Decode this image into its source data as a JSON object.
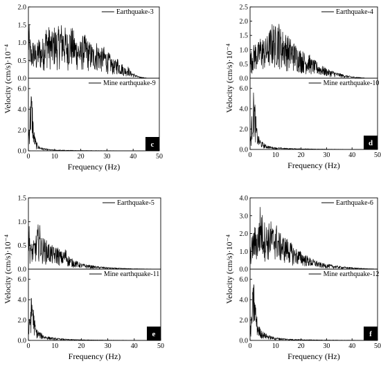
{
  "chart_data": [
    {
      "type": "line",
      "panel_letter": "c",
      "xlabel": "Frequency (Hz)",
      "ylabel": "Velocity (cm/s)·10⁻⁴",
      "xlim": [
        0,
        50
      ],
      "xticks": [
        "0",
        "10",
        "20",
        "30",
        "40",
        "50"
      ],
      "subplots": [
        {
          "name": "Earthquake-3",
          "ylim": [
            0,
            2.0
          ],
          "yticks": [
            "0.0",
            "0.5",
            "1.0",
            "1.5",
            "2.0"
          ],
          "x": [
            0,
            1,
            2,
            3,
            4,
            5,
            6,
            7,
            8,
            9,
            10,
            11,
            12,
            13,
            14,
            15,
            16,
            17,
            18,
            19,
            20,
            21,
            22,
            23,
            24,
            25,
            26,
            27,
            28,
            29,
            30,
            31,
            32,
            33,
            34,
            35,
            36,
            37,
            38,
            39,
            40,
            41,
            42,
            43,
            44,
            45
          ],
          "values": [
            1.75,
            0.9,
            1.15,
            0.85,
            1.2,
            1.0,
            1.3,
            1.55,
            1.45,
            1.3,
            1.5,
            1.35,
            1.6,
            1.55,
            1.45,
            1.3,
            1.5,
            1.4,
            1.2,
            1.15,
            1.05,
            1.25,
            1.2,
            1.05,
            1.0,
            0.9,
            1.05,
            0.95,
            0.85,
            0.9,
            0.75,
            0.7,
            0.55,
            0.5,
            0.6,
            0.45,
            0.4,
            0.3,
            0.35,
            0.2,
            0.15,
            0.1,
            0.05,
            0.04,
            0.02,
            0.01
          ]
        },
        {
          "name": "Mine earthquake-9",
          "ylim": [
            0,
            7.0
          ],
          "yticks": [
            "0.0",
            "2.0",
            "4.0",
            "6.0"
          ],
          "x": [
            0,
            0.5,
            1,
            1.5,
            2,
            2.5,
            3,
            4,
            5,
            6,
            8,
            10,
            15,
            20,
            25,
            30,
            40,
            50
          ],
          "values": [
            1.5,
            4.0,
            6.2,
            5.0,
            2.2,
            1.5,
            0.9,
            0.5,
            0.35,
            0.25,
            0.15,
            0.1,
            0.06,
            0.04,
            0.03,
            0.02,
            0.01,
            0.0
          ]
        }
      ]
    },
    {
      "type": "line",
      "panel_letter": "d",
      "xlabel": "Frequency (Hz)",
      "ylabel": "Velocity (cm/s)·10⁻⁴",
      "xlim": [
        0,
        50
      ],
      "xticks": [
        "0",
        "10",
        "20",
        "30",
        "40",
        "50"
      ],
      "subplots": [
        {
          "name": "Earthquake-4",
          "ylim": [
            0,
            2.5
          ],
          "yticks": [
            "0.0",
            "0.5",
            "1.0",
            "1.5",
            "2.0",
            "2.5"
          ],
          "x": [
            0,
            1,
            2,
            3,
            4,
            5,
            6,
            7,
            8,
            9,
            10,
            11,
            12,
            13,
            14,
            15,
            16,
            17,
            18,
            19,
            20,
            21,
            22,
            23,
            24,
            25,
            26,
            27,
            28,
            29,
            30,
            31,
            32,
            33,
            34,
            35,
            36,
            37,
            38,
            39,
            40,
            41,
            42,
            43,
            44,
            45
          ],
          "values": [
            0.9,
            1.1,
            1.3,
            1.2,
            1.5,
            1.45,
            1.4,
            1.55,
            1.8,
            2.0,
            1.85,
            2.15,
            1.75,
            1.7,
            1.6,
            1.5,
            1.4,
            1.3,
            1.2,
            1.1,
            1.0,
            0.95,
            0.8,
            0.9,
            0.7,
            0.65,
            0.6,
            0.5,
            0.45,
            0.4,
            0.35,
            0.3,
            0.28,
            0.25,
            0.2,
            0.18,
            0.15,
            0.12,
            0.1,
            0.08,
            0.06,
            0.05,
            0.04,
            0.03,
            0.02,
            0.01
          ]
        },
        {
          "name": "Mine earthquake-10",
          "ylim": [
            0,
            7.0
          ],
          "yticks": [
            "0.0",
            "2.0",
            "4.0",
            "6.0"
          ],
          "x": [
            0,
            0.5,
            1,
            1.5,
            2,
            2.5,
            3,
            4,
            5,
            6,
            8,
            10,
            15,
            20,
            25,
            30,
            40,
            50
          ],
          "values": [
            0.8,
            2.5,
            5.0,
            6.0,
            4.5,
            2.5,
            1.5,
            1.0,
            0.7,
            0.5,
            0.3,
            0.2,
            0.12,
            0.08,
            0.05,
            0.03,
            0.01,
            0.0
          ]
        }
      ]
    },
    {
      "type": "line",
      "panel_letter": "e",
      "xlabel": "Frequency (Hz)",
      "ylabel": "Velocity (cm/s)·10⁻⁴",
      "xlim": [
        0,
        50
      ],
      "xticks": [
        "0",
        "10",
        "20",
        "30",
        "40",
        "50"
      ],
      "subplots": [
        {
          "name": "Earthquake-5",
          "ylim": [
            0,
            1.5
          ],
          "yticks": [
            "0.0",
            "0.5",
            "1.0",
            "1.5"
          ],
          "x": [
            0,
            1,
            2,
            3,
            4,
            5,
            6,
            7,
            8,
            9,
            10,
            11,
            12,
            13,
            14,
            15,
            16,
            17,
            18,
            19,
            20,
            22,
            24,
            26,
            28,
            30,
            32,
            35,
            40,
            45,
            50
          ],
          "values": [
            1.1,
            0.55,
            0.6,
            0.75,
            1.05,
            0.7,
            0.65,
            0.6,
            0.55,
            0.5,
            0.45,
            0.5,
            0.4,
            0.35,
            0.45,
            0.3,
            0.25,
            0.2,
            0.18,
            0.15,
            0.12,
            0.1,
            0.08,
            0.06,
            0.05,
            0.04,
            0.03,
            0.02,
            0.01,
            0.005,
            0.0
          ]
        },
        {
          "name": "Mine earthquake-11",
          "ylim": [
            0,
            7.0
          ],
          "yticks": [
            "0.0",
            "2.0",
            "4.0",
            "6.0"
          ],
          "x": [
            0,
            0.5,
            1,
            1.5,
            2,
            2.5,
            3,
            4,
            5,
            6,
            8,
            10,
            15,
            20,
            25,
            30,
            40,
            50
          ],
          "values": [
            1.0,
            2.5,
            4.2,
            4.8,
            3.0,
            1.8,
            1.2,
            0.9,
            0.7,
            0.5,
            0.35,
            0.25,
            0.12,
            0.08,
            0.05,
            0.03,
            0.01,
            0.0
          ]
        }
      ]
    },
    {
      "type": "line",
      "panel_letter": "f",
      "xlabel": "Frequency (Hz)",
      "ylabel": "Velocity (cm/s)·10⁻⁴",
      "xlim": [
        0,
        50
      ],
      "xticks": [
        "0",
        "10",
        "20",
        "30",
        "40",
        "50"
      ],
      "subplots": [
        {
          "name": "Earthquake-6",
          "ylim": [
            0,
            4.0
          ],
          "yticks": [
            "0.0",
            "1.0",
            "2.0",
            "3.0",
            "4.0"
          ],
          "x": [
            0,
            1,
            2,
            3,
            4,
            5,
            6,
            7,
            8,
            9,
            10,
            11,
            12,
            13,
            14,
            15,
            16,
            17,
            18,
            19,
            20,
            21,
            22,
            23,
            24,
            25,
            26,
            27,
            28,
            30,
            32,
            34,
            36,
            38,
            40,
            42,
            44,
            46,
            48,
            50
          ],
          "values": [
            1.2,
            2.0,
            2.5,
            2.2,
            3.7,
            3.0,
            2.6,
            2.5,
            2.8,
            2.4,
            2.75,
            2.2,
            2.0,
            1.9,
            1.8,
            1.7,
            1.5,
            1.3,
            1.2,
            1.1,
            1.0,
            0.9,
            0.8,
            0.7,
            0.6,
            0.55,
            0.5,
            0.4,
            0.35,
            0.3,
            0.25,
            0.2,
            0.15,
            0.12,
            0.1,
            0.07,
            0.05,
            0.03,
            0.02,
            0.01
          ]
        },
        {
          "name": "Mine earthquake-12",
          "ylim": [
            0,
            7.0
          ],
          "yticks": [
            "0.0",
            "2.0",
            "4.0",
            "6.0"
          ],
          "x": [
            0,
            0.5,
            1,
            1.5,
            2,
            2.5,
            3,
            4,
            5,
            6,
            8,
            10,
            15,
            20,
            25,
            30,
            40,
            50
          ],
          "values": [
            0.8,
            2.5,
            5.0,
            6.0,
            4.3,
            2.8,
            1.8,
            1.2,
            0.9,
            0.7,
            0.45,
            0.3,
            0.15,
            0.1,
            0.06,
            0.04,
            0.02,
            0.0
          ]
        }
      ]
    }
  ]
}
